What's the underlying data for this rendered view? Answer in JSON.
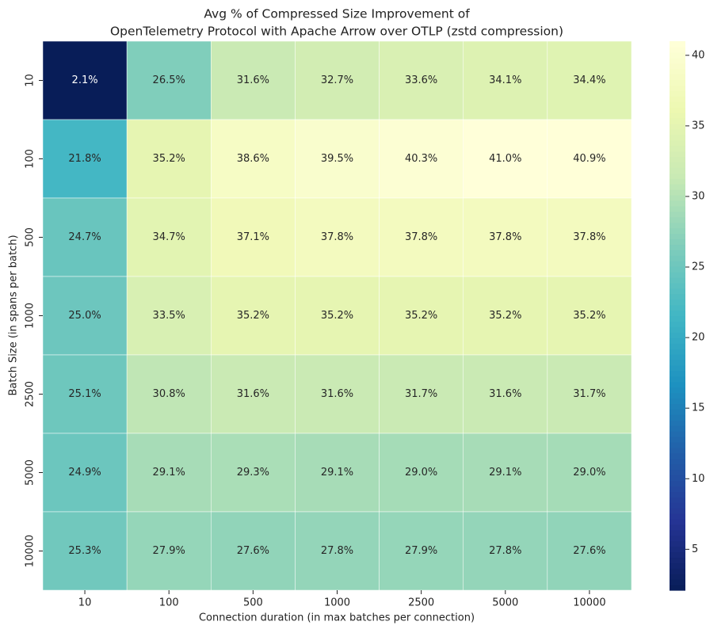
{
  "chart_data": {
    "type": "heatmap",
    "title": [
      "Avg % of Compressed Size Improvement of",
      "OpenTelemetry Protocol with Apache Arrow over OTLP (zstd compression)"
    ],
    "x_label": "Connection duration (in max batches per connection)",
    "y_label": "Batch Size (in spans per batch)",
    "x": [
      "10",
      "100",
      "500",
      "1000",
      "2500",
      "5000",
      "10000"
    ],
    "y": [
      "10",
      "100",
      "500",
      "1000",
      "2500",
      "5000",
      "10000"
    ],
    "values": [
      [
        2.1,
        26.5,
        31.6,
        32.7,
        33.6,
        34.1,
        34.4
      ],
      [
        21.8,
        35.2,
        38.6,
        39.5,
        40.3,
        41.0,
        40.9
      ],
      [
        24.7,
        34.7,
        37.1,
        37.8,
        37.8,
        37.8,
        37.8
      ],
      [
        25.0,
        33.5,
        35.2,
        35.2,
        35.2,
        35.2,
        35.2
      ],
      [
        25.1,
        30.8,
        31.6,
        31.6,
        31.7,
        31.6,
        31.7
      ],
      [
        24.9,
        29.1,
        29.3,
        29.1,
        29.0,
        29.1,
        29.0
      ],
      [
        25.3,
        27.9,
        27.6,
        27.8,
        27.9,
        27.8,
        27.6
      ]
    ],
    "value_labels": [
      [
        "2.1%",
        "26.5%",
        "31.6%",
        "32.7%",
        "33.6%",
        "34.1%",
        "34.4%"
      ],
      [
        "21.8%",
        "35.2%",
        "38.6%",
        "39.5%",
        "40.3%",
        "41.0%",
        "40.9%"
      ],
      [
        "24.7%",
        "34.7%",
        "37.1%",
        "37.8%",
        "37.8%",
        "37.8%",
        "37.8%"
      ],
      [
        "25.0%",
        "33.5%",
        "35.2%",
        "35.2%",
        "35.2%",
        "35.2%",
        "35.2%"
      ],
      [
        "25.1%",
        "30.8%",
        "31.6%",
        "31.6%",
        "31.7%",
        "31.6%",
        "31.7%"
      ],
      [
        "24.9%",
        "29.1%",
        "29.3%",
        "29.1%",
        "29.0%",
        "29.1%",
        "29.0%"
      ],
      [
        "25.3%",
        "27.9%",
        "27.6%",
        "27.8%",
        "27.9%",
        "27.8%",
        "27.6%"
      ]
    ],
    "clim": [
      2.1,
      41.0
    ],
    "cticks": [
      5,
      10,
      15,
      20,
      25,
      30,
      35,
      40
    ],
    "colormap": [
      "#081d58",
      "#253494",
      "#225ea8",
      "#1d91c0",
      "#41b6c4",
      "#7fcdbb",
      "#c7e9b4",
      "#edf8b1",
      "#ffffd9"
    ]
  }
}
